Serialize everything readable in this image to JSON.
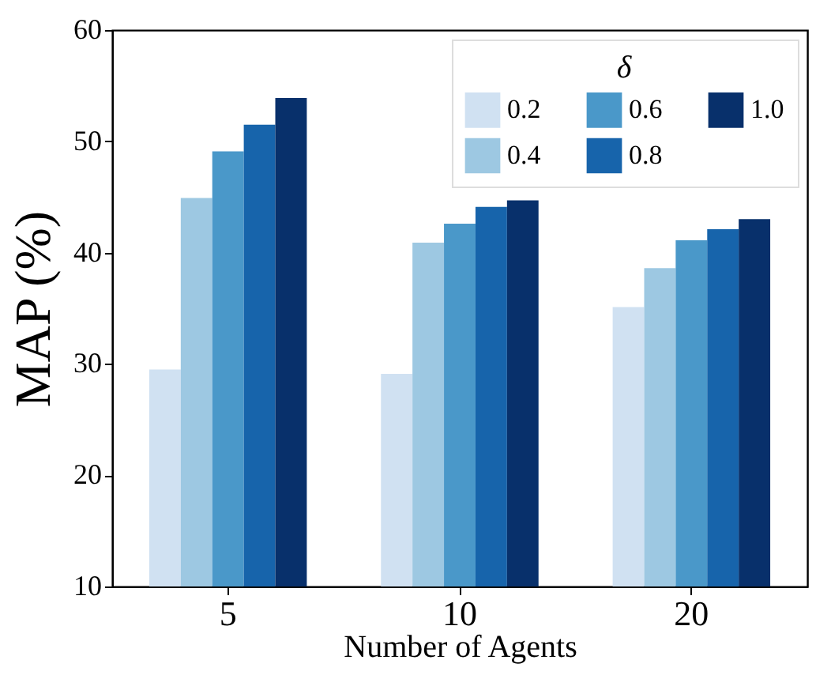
{
  "chart_data": {
    "type": "bar",
    "xlabel": "Number of Agents",
    "ylabel": "MAP (%)",
    "legend_title": "δ",
    "legend": "top right",
    "categories": [
      "5",
      "10",
      "20"
    ],
    "series": [
      {
        "name": "0.2",
        "color": "#d0e1f2",
        "values": [
          29.5,
          29.1,
          35.1
        ]
      },
      {
        "name": "0.4",
        "color": "#9dc8e2",
        "values": [
          44.9,
          40.9,
          38.6
        ]
      },
      {
        "name": "0.6",
        "color": "#4a98c9",
        "values": [
          49.1,
          42.6,
          41.1
        ]
      },
      {
        "name": "0.8",
        "color": "#1764ab",
        "values": [
          51.5,
          44.1,
          42.1
        ]
      },
      {
        "name": "1.0",
        "color": "#08306b",
        "values": [
          53.9,
          44.7,
          43.0
        ]
      }
    ],
    "ylim": [
      10,
      60
    ],
    "yticks": [
      10,
      20,
      30,
      40,
      50,
      60
    ],
    "grid": false
  }
}
